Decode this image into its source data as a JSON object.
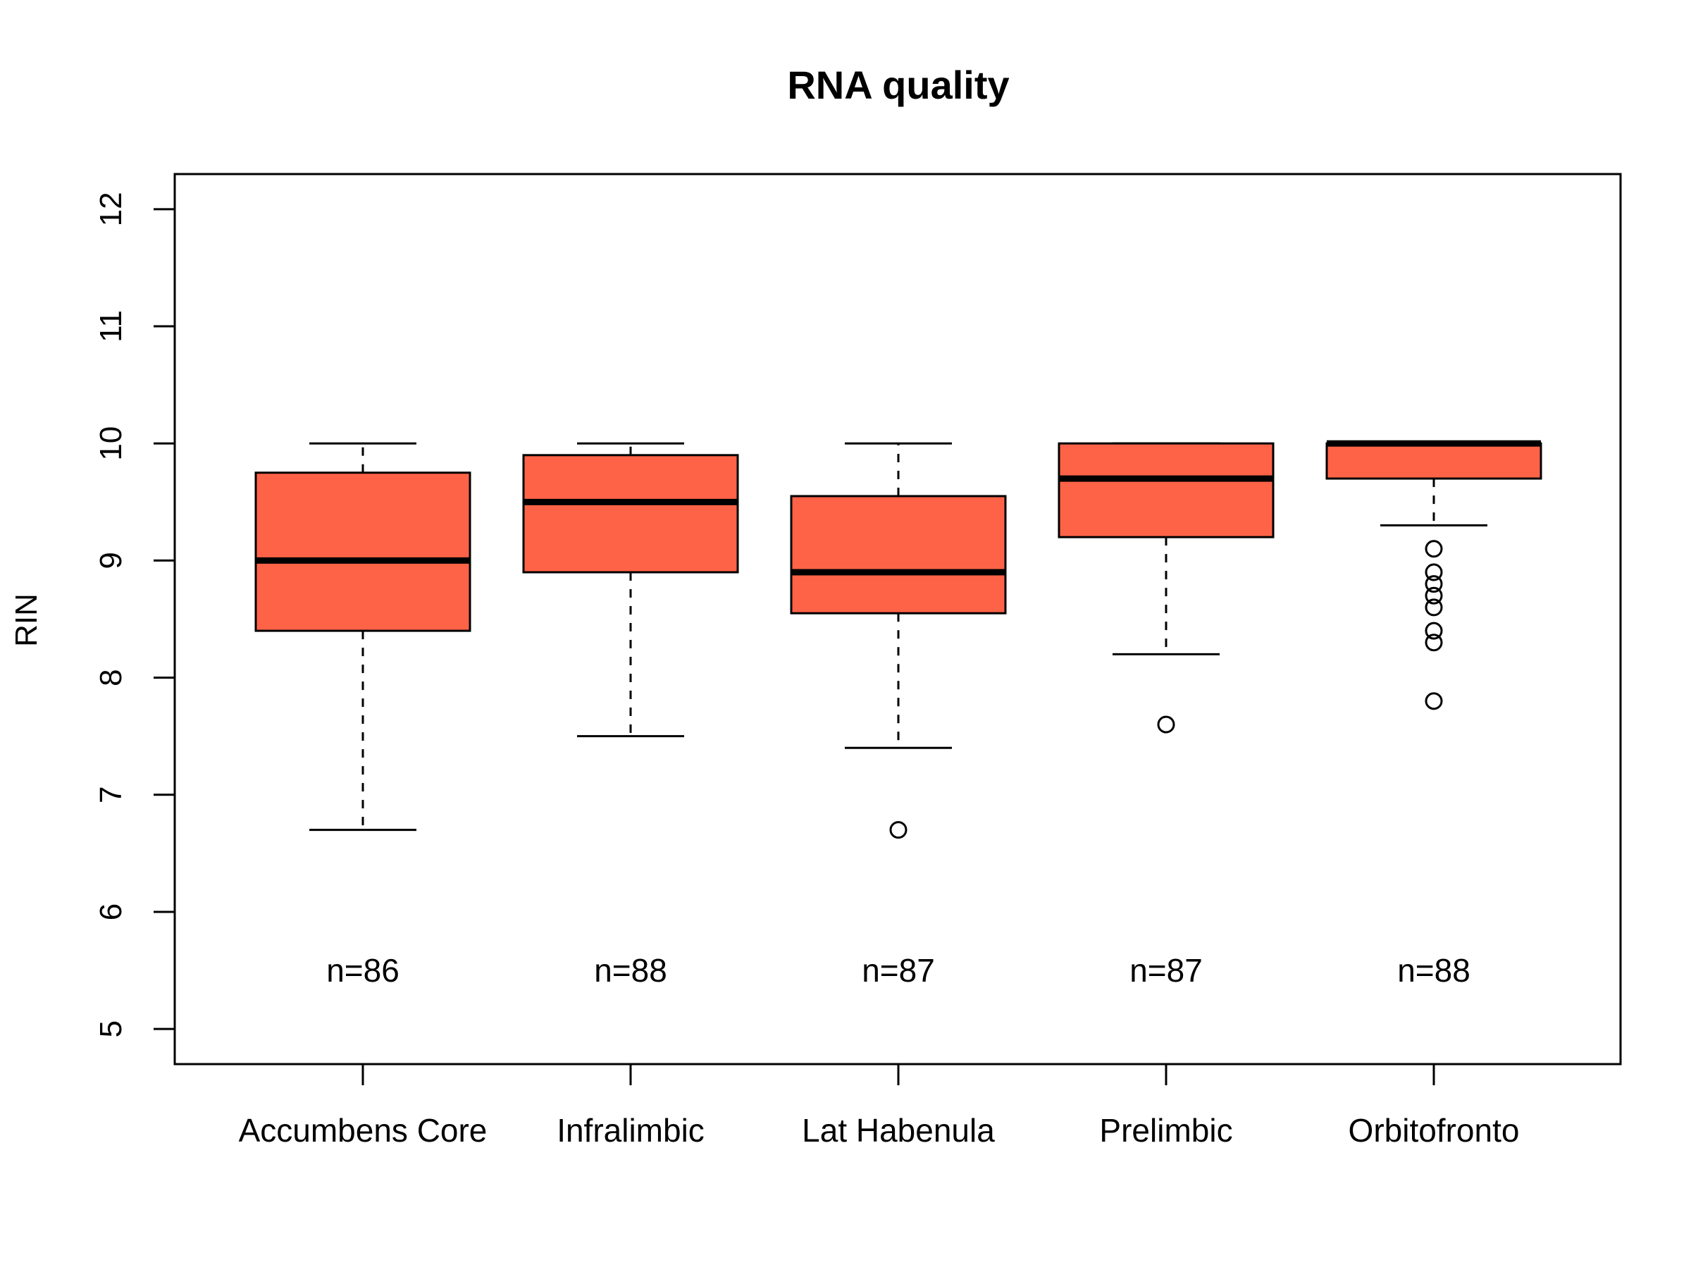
{
  "chart_data": {
    "type": "boxplot",
    "title": "RNA quality",
    "xlabel": "",
    "ylabel": "RIN",
    "ylim": [
      4.7,
      12.3
    ],
    "y_ticks": [
      "5",
      "6",
      "7",
      "8",
      "9",
      "10",
      "11",
      "12"
    ],
    "box_color": "#FF6347",
    "grid": false,
    "legend": "none",
    "categories": [
      "Accumbens Core",
      "Infralimbic",
      "Lat Habenula",
      "Prelimbic",
      "Orbitofronto"
    ],
    "boxes": [
      {
        "label": "Accumbens Core",
        "whisker_low": 6.7,
        "q1": 8.4,
        "median": 9.0,
        "q3": 9.75,
        "whisker_high": 10.0,
        "outliers": [],
        "n_label": "n=86"
      },
      {
        "label": "Infralimbic",
        "whisker_low": 7.5,
        "q1": 8.9,
        "median": 9.5,
        "q3": 9.9,
        "whisker_high": 10.0,
        "outliers": [],
        "n_label": "n=88"
      },
      {
        "label": "Lat Habenula",
        "whisker_low": 7.4,
        "q1": 8.55,
        "median": 8.9,
        "q3": 9.55,
        "whisker_high": 10.0,
        "outliers": [
          6.7
        ],
        "n_label": "n=87"
      },
      {
        "label": "Prelimbic",
        "whisker_low": 8.2,
        "q1": 9.2,
        "median": 9.7,
        "q3": 10.0,
        "whisker_high": 10.0,
        "outliers": [
          7.6
        ],
        "n_label": "n=87"
      },
      {
        "label": "Orbitofronto",
        "whisker_low": 9.3,
        "q1": 9.7,
        "median": 10.0,
        "q3": 10.0,
        "whisker_high": 10.0,
        "outliers": [
          9.1,
          8.9,
          8.8,
          8.7,
          8.6,
          8.4,
          8.3,
          7.8
        ],
        "n_label": "n=88"
      }
    ]
  }
}
